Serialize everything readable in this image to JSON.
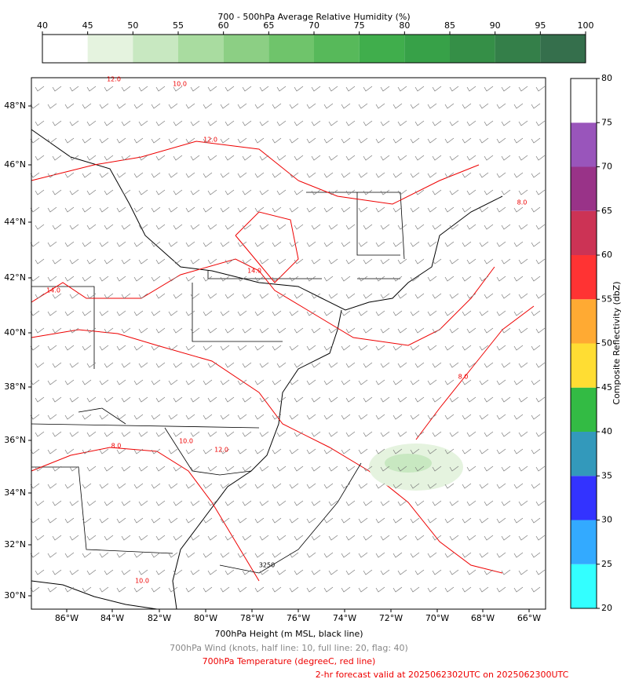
{
  "humidity_colorbar": {
    "title": "700 - 500hPa Average Relative Humidity (%)",
    "ticks": [
      40,
      45,
      50,
      55,
      60,
      65,
      70,
      75,
      80,
      85,
      90,
      95,
      100
    ],
    "colors": [
      "#ffffff",
      "#e5f3df",
      "#c8e8c1",
      "#a9dca0",
      "#8ccf84",
      "#6fc46b",
      "#57b95a",
      "#40ae4c",
      "#37a148",
      "#358f47",
      "#347f49",
      "#356f4c"
    ]
  },
  "reflectivity_colorbar": {
    "label": "Composite Reflectivity (dbZ)",
    "ticks": [
      20,
      25,
      30,
      35,
      40,
      45,
      50,
      55,
      60,
      65,
      70,
      75,
      80
    ],
    "colors": [
      "#33ffff",
      "#33aaff",
      "#3333ff",
      "#3399bb",
      "#33bb44",
      "#ffdd33",
      "#ffaa33",
      "#ff3333",
      "#cc3355",
      "#993388",
      "#9955bb",
      "#ffffff"
    ]
  },
  "map": {
    "lat_labels": [
      "48°N",
      "46°N",
      "44°N",
      "42°N",
      "40°N",
      "38°N",
      "36°N",
      "34°N",
      "32°N",
      "30°N"
    ],
    "lon_labels": [
      "86°W",
      "84°W",
      "82°W",
      "80°W",
      "78°W",
      "76°W",
      "74°W",
      "72°W",
      "70°W",
      "68°W",
      "66°W"
    ],
    "contour_labels": [
      "12.0",
      "10.0",
      "12.0",
      "14.0",
      "14.0",
      "8.0",
      "8.0",
      "8.0",
      "10.0",
      "12.0",
      "3250",
      "10.0"
    ]
  },
  "captions": [
    "700hPa Height (m MSL, black line)",
    "700hPa Wind (knots, half line: 10, full line: 20, flag: 40)",
    "700hPa Temperature (degreeC, red line)",
    "2-hr forecast valid at 2025062302UTC on 2025062300UTC"
  ]
}
